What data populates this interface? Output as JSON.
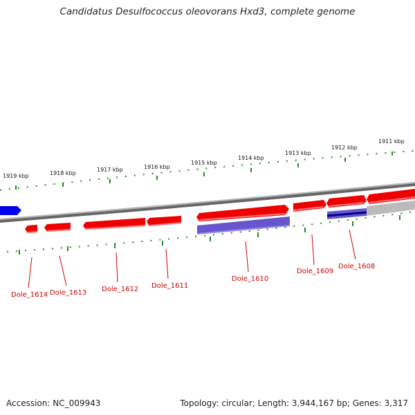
{
  "title": "Candidatus Desulfococcus oleovorans Hxd3, complete genome",
  "footer": {
    "accession": "Accession: NC_009943",
    "stats": "Topology: circular; Length: 3,944,167 bp; Genes: 3,317"
  },
  "colors": {
    "forward_gene": "#ee0000",
    "reverse_gene": "#6655cc",
    "selected_gene": "#0000ee",
    "backbone": "#888888",
    "ticks": "#228822",
    "label": "#cc0000"
  },
  "scale_labels": [
    "1919 kbp",
    "1918 kbp",
    "1917 kbp",
    "1916 kbp",
    "1915 kbp",
    "1914 kbp",
    "1913 kbp",
    "1912 kbp",
    "1911 kbp"
  ],
  "gene_labels": [
    "Dole_1614",
    "Dole_1613",
    "Dole_1612",
    "Dole_1611",
    "Dole_1610",
    "Dole_1609",
    "Dole_1608"
  ]
}
